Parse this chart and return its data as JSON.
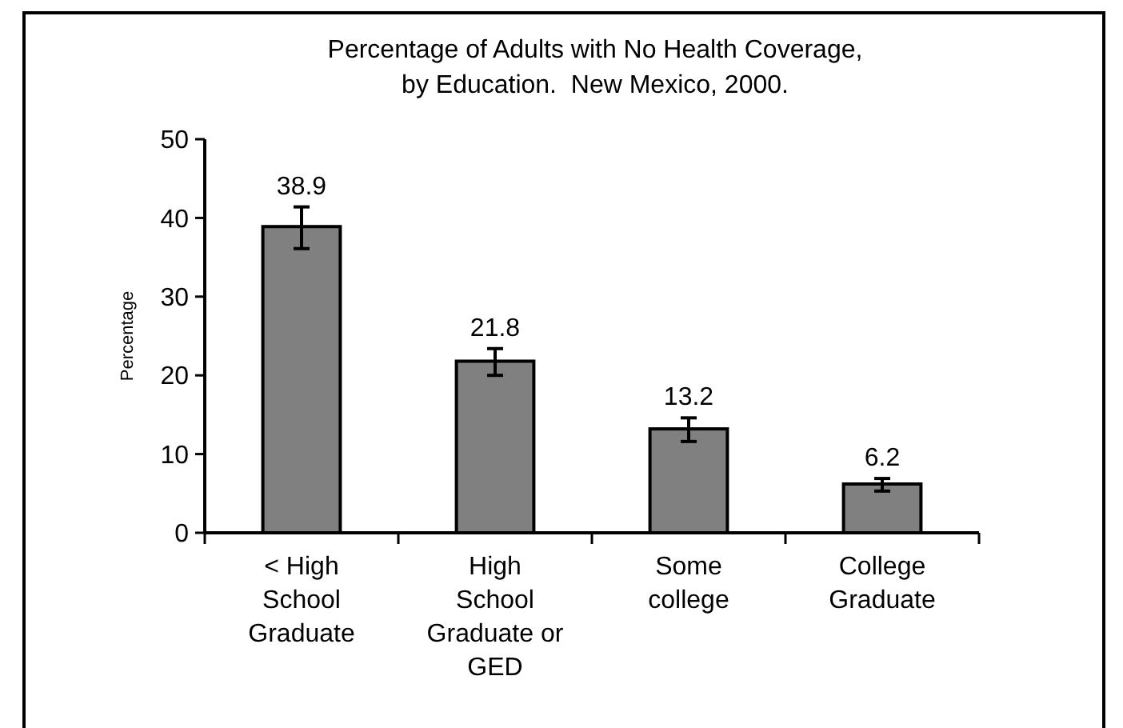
{
  "chart_data": {
    "type": "bar",
    "title": "Percentage of Adults with No Health Coverage,\nby Education.  New Mexico, 2000.",
    "ylabel": "Percentage",
    "categories": [
      "< High\nSchool\nGraduate",
      "High\nSchool\nGraduate or\nGED",
      "Some\ncollege",
      "College\nGraduate"
    ],
    "values": [
      38.9,
      21.8,
      13.2,
      6.2
    ],
    "color": "#808080",
    "errors": [
      [
        36.1,
        41.4
      ],
      [
        20.0,
        23.4
      ],
      [
        11.6,
        14.6
      ],
      [
        5.3,
        6.9
      ]
    ],
    "data_labels": true,
    "ylim": [
      0,
      50
    ],
    "yticks": [
      0,
      10,
      20,
      30,
      40,
      50
    ],
    "grid": false
  }
}
